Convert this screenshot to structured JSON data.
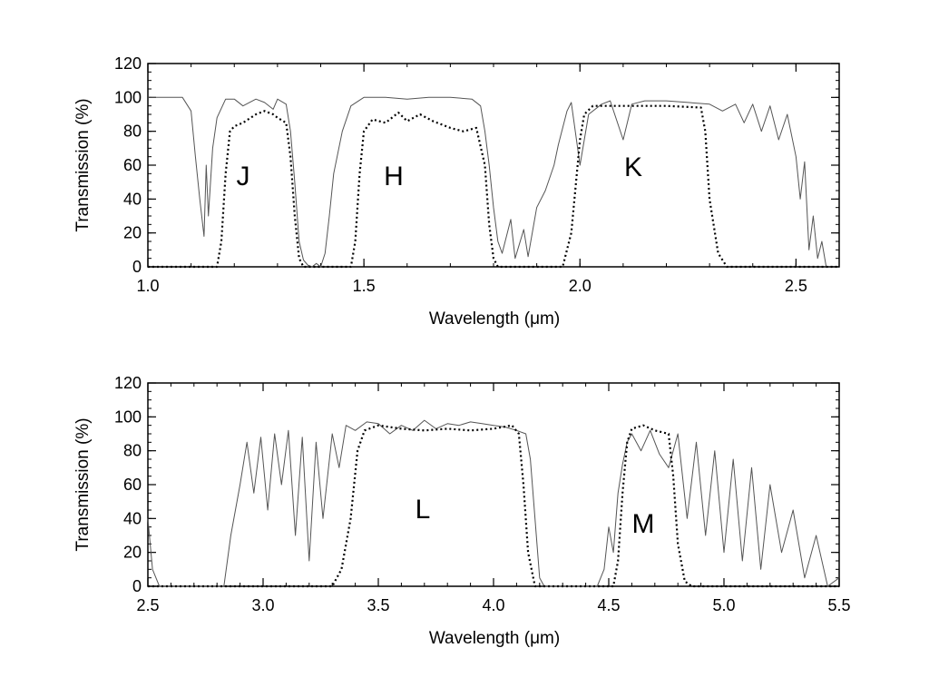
{
  "chart_data": [
    {
      "type": "line",
      "xlabel": "Wavelength (μm)",
      "ylabel": "Transmission (%)",
      "xlim": [
        1.0,
        2.6
      ],
      "ylim": [
        0,
        120
      ],
      "xticks": [
        "1.0",
        "1.5",
        "2.0",
        "2.5"
      ],
      "yticks": [
        "0",
        "20",
        "40",
        "60",
        "80",
        "100",
        "120"
      ],
      "grid": false,
      "series": [
        {
          "style": "solid-gray",
          "color": "#555555",
          "points": [
            [
              1.0,
              100
            ],
            [
              1.08,
              100
            ],
            [
              1.1,
              92
            ],
            [
              1.11,
              65
            ],
            [
              1.12,
              40
            ],
            [
              1.13,
              18
            ],
            [
              1.135,
              60
            ],
            [
              1.14,
              30
            ],
            [
              1.15,
              70
            ],
            [
              1.16,
              88
            ],
            [
              1.18,
              99
            ],
            [
              1.2,
              99
            ],
            [
              1.22,
              95
            ],
            [
              1.25,
              99
            ],
            [
              1.27,
              97
            ],
            [
              1.29,
              93
            ],
            [
              1.3,
              99
            ],
            [
              1.32,
              96
            ],
            [
              1.33,
              80
            ],
            [
              1.34,
              50
            ],
            [
              1.35,
              15
            ],
            [
              1.36,
              4
            ],
            [
              1.37,
              1
            ],
            [
              1.38,
              0
            ],
            [
              1.39,
              2
            ],
            [
              1.4,
              0
            ],
            [
              1.41,
              8
            ],
            [
              1.42,
              30
            ],
            [
              1.43,
              55
            ],
            [
              1.45,
              80
            ],
            [
              1.47,
              95
            ],
            [
              1.5,
              100
            ],
            [
              1.55,
              100
            ],
            [
              1.6,
              99
            ],
            [
              1.65,
              100
            ],
            [
              1.7,
              100
            ],
            [
              1.75,
              99
            ],
            [
              1.77,
              95
            ],
            [
              1.78,
              80
            ],
            [
              1.79,
              60
            ],
            [
              1.8,
              35
            ],
            [
              1.81,
              15
            ],
            [
              1.82,
              8
            ],
            [
              1.84,
              28
            ],
            [
              1.85,
              5
            ],
            [
              1.87,
              22
            ],
            [
              1.88,
              6
            ],
            [
              1.9,
              35
            ],
            [
              1.92,
              45
            ],
            [
              1.94,
              60
            ],
            [
              1.95,
              72
            ],
            [
              1.97,
              92
            ],
            [
              1.98,
              97
            ],
            [
              2.0,
              60
            ],
            [
              2.02,
              90
            ],
            [
              2.05,
              96
            ],
            [
              2.07,
              98
            ],
            [
              2.1,
              75
            ],
            [
              2.12,
              96
            ],
            [
              2.15,
              98
            ],
            [
              2.2,
              98
            ],
            [
              2.25,
              97
            ],
            [
              2.3,
              96
            ],
            [
              2.33,
              92
            ],
            [
              2.36,
              96
            ],
            [
              2.38,
              85
            ],
            [
              2.4,
              96
            ],
            [
              2.42,
              80
            ],
            [
              2.44,
              95
            ],
            [
              2.46,
              75
            ],
            [
              2.48,
              90
            ],
            [
              2.5,
              65
            ],
            [
              2.51,
              40
            ],
            [
              2.52,
              62
            ],
            [
              2.53,
              10
            ],
            [
              2.54,
              30
            ],
            [
              2.55,
              5
            ],
            [
              2.56,
              15
            ],
            [
              2.57,
              0
            ]
          ]
        },
        {
          "style": "dotted-black",
          "color": "#000000",
          "points": [
            [
              1.0,
              0
            ],
            [
              1.16,
              0
            ],
            [
              1.17,
              15
            ],
            [
              1.18,
              55
            ],
            [
              1.19,
              80
            ],
            [
              1.2,
              83
            ],
            [
              1.22,
              85
            ],
            [
              1.25,
              90
            ],
            [
              1.27,
              92
            ],
            [
              1.29,
              90
            ],
            [
              1.3,
              88
            ],
            [
              1.32,
              85
            ],
            [
              1.33,
              65
            ],
            [
              1.34,
              30
            ],
            [
              1.35,
              5
            ],
            [
              1.36,
              0
            ],
            [
              1.47,
              0
            ],
            [
              1.48,
              15
            ],
            [
              1.49,
              55
            ],
            [
              1.5,
              80
            ],
            [
              1.52,
              87
            ],
            [
              1.55,
              85
            ],
            [
              1.58,
              91
            ],
            [
              1.6,
              86
            ],
            [
              1.63,
              90
            ],
            [
              1.66,
              86
            ],
            [
              1.7,
              82
            ],
            [
              1.73,
              80
            ],
            [
              1.76,
              82
            ],
            [
              1.78,
              60
            ],
            [
              1.79,
              25
            ],
            [
              1.8,
              5
            ],
            [
              1.81,
              0
            ],
            [
              1.96,
              0
            ],
            [
              1.98,
              20
            ],
            [
              2.0,
              75
            ],
            [
              2.01,
              90
            ],
            [
              2.03,
              95
            ],
            [
              2.1,
              95
            ],
            [
              2.2,
              95
            ],
            [
              2.28,
              94
            ],
            [
              2.29,
              80
            ],
            [
              2.3,
              40
            ],
            [
              2.32,
              8
            ],
            [
              2.34,
              0
            ],
            [
              2.6,
              0
            ]
          ]
        }
      ],
      "annotations": [
        "J",
        "H",
        "K"
      ]
    },
    {
      "type": "line",
      "xlabel": "Wavelength (μm)",
      "ylabel": "Transmission (%)",
      "xlim": [
        2.5,
        5.5
      ],
      "ylim": [
        0,
        120
      ],
      "xticks": [
        "2.5",
        "3.0",
        "3.5",
        "4.0",
        "4.5",
        "5.0",
        "5.5"
      ],
      "yticks": [
        "0",
        "20",
        "40",
        "60",
        "80",
        "100",
        "120"
      ],
      "grid": false,
      "series": [
        {
          "style": "solid-gray",
          "color": "#555555",
          "points": [
            [
              2.5,
              40
            ],
            [
              2.52,
              10
            ],
            [
              2.55,
              0
            ],
            [
              2.83,
              0
            ],
            [
              2.86,
              30
            ],
            [
              2.9,
              60
            ],
            [
              2.93,
              85
            ],
            [
              2.96,
              55
            ],
            [
              2.99,
              88
            ],
            [
              3.02,
              45
            ],
            [
              3.05,
              90
            ],
            [
              3.08,
              60
            ],
            [
              3.11,
              92
            ],
            [
              3.14,
              30
            ],
            [
              3.17,
              88
            ],
            [
              3.2,
              15
            ],
            [
              3.23,
              85
            ],
            [
              3.26,
              40
            ],
            [
              3.3,
              90
            ],
            [
              3.33,
              70
            ],
            [
              3.36,
              95
            ],
            [
              3.4,
              92
            ],
            [
              3.45,
              97
            ],
            [
              3.5,
              96
            ],
            [
              3.55,
              90
            ],
            [
              3.6,
              95
            ],
            [
              3.65,
              92
            ],
            [
              3.7,
              98
            ],
            [
              3.75,
              93
            ],
            [
              3.8,
              96
            ],
            [
              3.85,
              95
            ],
            [
              3.9,
              97
            ],
            [
              3.95,
              96
            ],
            [
              4.0,
              95
            ],
            [
              4.05,
              94
            ],
            [
              4.1,
              92
            ],
            [
              4.14,
              90
            ],
            [
              4.16,
              75
            ],
            [
              4.18,
              40
            ],
            [
              4.2,
              5
            ],
            [
              4.22,
              0
            ],
            [
              4.45,
              0
            ],
            [
              4.48,
              10
            ],
            [
              4.5,
              35
            ],
            [
              4.52,
              20
            ],
            [
              4.54,
              55
            ],
            [
              4.56,
              72
            ],
            [
              4.58,
              85
            ],
            [
              4.6,
              90
            ],
            [
              4.64,
              80
            ],
            [
              4.68,
              92
            ],
            [
              4.72,
              78
            ],
            [
              4.76,
              70
            ],
            [
              4.8,
              90
            ],
            [
              4.84,
              40
            ],
            [
              4.88,
              85
            ],
            [
              4.92,
              30
            ],
            [
              4.96,
              80
            ],
            [
              5.0,
              20
            ],
            [
              5.04,
              75
            ],
            [
              5.08,
              15
            ],
            [
              5.12,
              70
            ],
            [
              5.16,
              10
            ],
            [
              5.2,
              60
            ],
            [
              5.25,
              20
            ],
            [
              5.3,
              45
            ],
            [
              5.35,
              5
            ],
            [
              5.4,
              30
            ],
            [
              5.45,
              0
            ],
            [
              5.5,
              5
            ]
          ]
        },
        {
          "style": "dotted-black",
          "color": "#000000",
          "points": [
            [
              2.5,
              0
            ],
            [
              3.3,
              0
            ],
            [
              3.34,
              10
            ],
            [
              3.38,
              40
            ],
            [
              3.41,
              80
            ],
            [
              3.44,
              92
            ],
            [
              3.5,
              95
            ],
            [
              3.6,
              93
            ],
            [
              3.7,
              92
            ],
            [
              3.8,
              93
            ],
            [
              3.9,
              92
            ],
            [
              4.0,
              93
            ],
            [
              4.08,
              95
            ],
            [
              4.11,
              90
            ],
            [
              4.13,
              60
            ],
            [
              4.15,
              20
            ],
            [
              4.18,
              0
            ],
            [
              4.52,
              0
            ],
            [
              4.54,
              15
            ],
            [
              4.56,
              55
            ],
            [
              4.58,
              85
            ],
            [
              4.6,
              93
            ],
            [
              4.65,
              95
            ],
            [
              4.7,
              92
            ],
            [
              4.76,
              90
            ],
            [
              4.78,
              65
            ],
            [
              4.8,
              25
            ],
            [
              4.83,
              3
            ],
            [
              4.86,
              0
            ],
            [
              5.5,
              0
            ]
          ]
        }
      ],
      "annotations": [
        "L",
        "M"
      ]
    }
  ]
}
